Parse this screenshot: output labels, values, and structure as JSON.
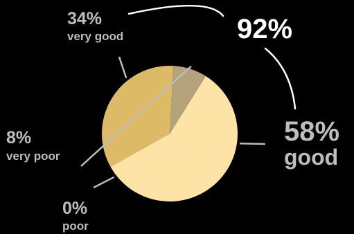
{
  "chart_data": {
    "type": "pie",
    "slices": [
      {
        "label": "good",
        "value": 58,
        "value_label": "58%",
        "color": "#fde3a6"
      },
      {
        "label": "very good",
        "value": 34,
        "value_label": "34%",
        "color": "#dcba66"
      },
      {
        "label": "very poor",
        "value": 8,
        "value_label": "8%",
        "color": "#b4a27a"
      },
      {
        "label": "poor",
        "value": 0,
        "value_label": "0%",
        "color": "#c9b27e"
      }
    ],
    "combined_annotation": {
      "value": 92,
      "value_label": "92%",
      "covers": [
        "very good",
        "good"
      ]
    },
    "colors": {
      "background": "#000000",
      "label_muted": "#bdbdbd",
      "label_highlight": "#ffffff"
    }
  }
}
